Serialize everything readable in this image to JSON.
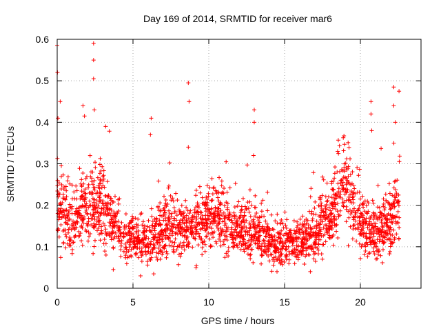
{
  "chart_data": {
    "type": "scatter",
    "title": "Day 169 of 2014, SRMTID for receiver mar6",
    "xlabel": "GPS time / hours",
    "ylabel": "SRMTID / TECUs",
    "xlim": [
      0,
      24
    ],
    "ylim": [
      0,
      0.6
    ],
    "xticks": [
      0,
      5,
      10,
      15,
      20
    ],
    "yticks": [
      0,
      0.1,
      0.2,
      0.3,
      0.4,
      0.5,
      0.6
    ],
    "grid": true,
    "marker": "+",
    "marker_color": "#ff0000",
    "n_points_estimated": 2400,
    "data_range_x": [
      0,
      22.6
    ],
    "trend_profile": {
      "x_hours": [
        0,
        1,
        2,
        3,
        4,
        5,
        6,
        7,
        8,
        9,
        10,
        11,
        12,
        13,
        14,
        15,
        16,
        17,
        18,
        19,
        20,
        21,
        22,
        22.6
      ],
      "median_srmtid": [
        0.19,
        0.16,
        0.21,
        0.2,
        0.13,
        0.12,
        0.11,
        0.15,
        0.14,
        0.15,
        0.17,
        0.16,
        0.14,
        0.13,
        0.11,
        0.1,
        0.11,
        0.13,
        0.18,
        0.25,
        0.15,
        0.13,
        0.17,
        0.22
      ]
    },
    "notable_points": [
      {
        "x": 0.0,
        "y": 0.585
      },
      {
        "x": 0.02,
        "y": 0.52
      },
      {
        "x": 0.05,
        "y": 0.41
      },
      {
        "x": 0.2,
        "y": 0.45
      },
      {
        "x": 1.8,
        "y": 0.415
      },
      {
        "x": 1.7,
        "y": 0.44
      },
      {
        "x": 2.4,
        "y": 0.59
      },
      {
        "x": 2.4,
        "y": 0.55
      },
      {
        "x": 2.4,
        "y": 0.505
      },
      {
        "x": 2.45,
        "y": 0.43
      },
      {
        "x": 3.2,
        "y": 0.39
      },
      {
        "x": 6.2,
        "y": 0.41
      },
      {
        "x": 6.15,
        "y": 0.37
      },
      {
        "x": 8.65,
        "y": 0.495
      },
      {
        "x": 8.7,
        "y": 0.45
      },
      {
        "x": 8.65,
        "y": 0.34
      },
      {
        "x": 13.0,
        "y": 0.43
      },
      {
        "x": 13.0,
        "y": 0.4
      },
      {
        "x": 12.95,
        "y": 0.32
      },
      {
        "x": 18.5,
        "y": 0.33
      },
      {
        "x": 20.7,
        "y": 0.45
      },
      {
        "x": 20.7,
        "y": 0.42
      },
      {
        "x": 20.75,
        "y": 0.38
      },
      {
        "x": 22.2,
        "y": 0.485
      },
      {
        "x": 22.2,
        "y": 0.44
      },
      {
        "x": 22.55,
        "y": 0.475
      },
      {
        "x": 22.3,
        "y": 0.4
      },
      {
        "x": 5.5,
        "y": 0.03
      },
      {
        "x": 14.5,
        "y": 0.04
      },
      {
        "x": 16.7,
        "y": 0.04
      },
      {
        "x": 3.7,
        "y": 0.045
      }
    ]
  }
}
